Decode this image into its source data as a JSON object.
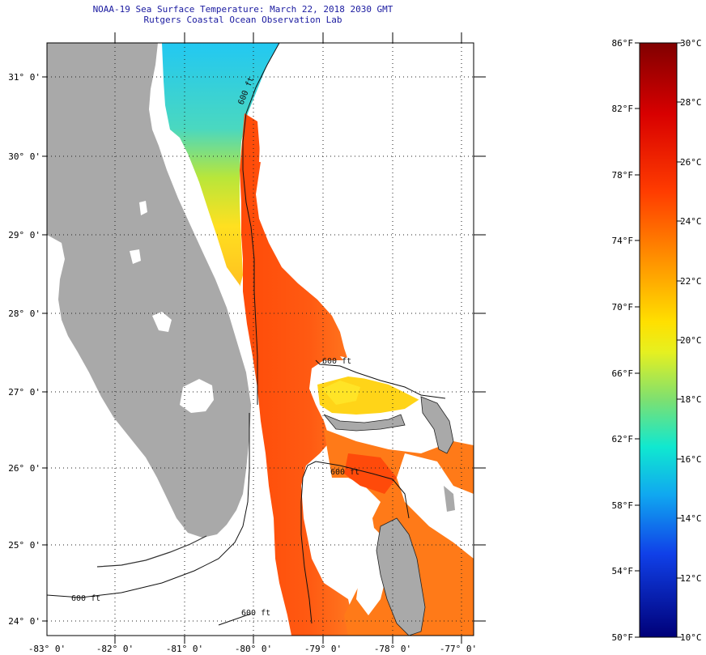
{
  "header": {
    "title": "NOAA-19 Sea Surface Temperature:  March 22, 2018 2030 GMT",
    "subtitle": "Rutgers Coastal Ocean Observation Lab"
  },
  "map": {
    "lat_labels": [
      "31° 0'",
      "30° 0'",
      "29° 0'",
      "28° 0'",
      "27° 0'",
      "26° 0'",
      "25° 0'",
      "24° 0'"
    ],
    "lon_labels": [
      "-83° 0'",
      "-82° 0'",
      "-81° 0'",
      "-80° 0'",
      "-79° 0'",
      "-78° 0'",
      "-77° 0'"
    ],
    "contour_labels": [
      "600 ft",
      "600 ft",
      "600 ft",
      "600 ft",
      "600 ft"
    ],
    "colors": {
      "land": "#a9a9a9",
      "cloud": "#ffffff",
      "water_warm": "#ff5a10",
      "water_mid": "#ffd21c",
      "water_cool": "#2ad2f0"
    }
  },
  "colorbar": {
    "fahrenheit_labels": [
      "86°F",
      "82°F",
      "78°F",
      "74°F",
      "70°F",
      "66°F",
      "62°F",
      "58°F",
      "54°F",
      "50°F"
    ],
    "celsius_labels": [
      "30°C",
      "28°C",
      "26°C",
      "24°C",
      "22°C",
      "20°C",
      "18°C",
      "16°C",
      "14°C",
      "12°C",
      "10°C"
    ]
  }
}
